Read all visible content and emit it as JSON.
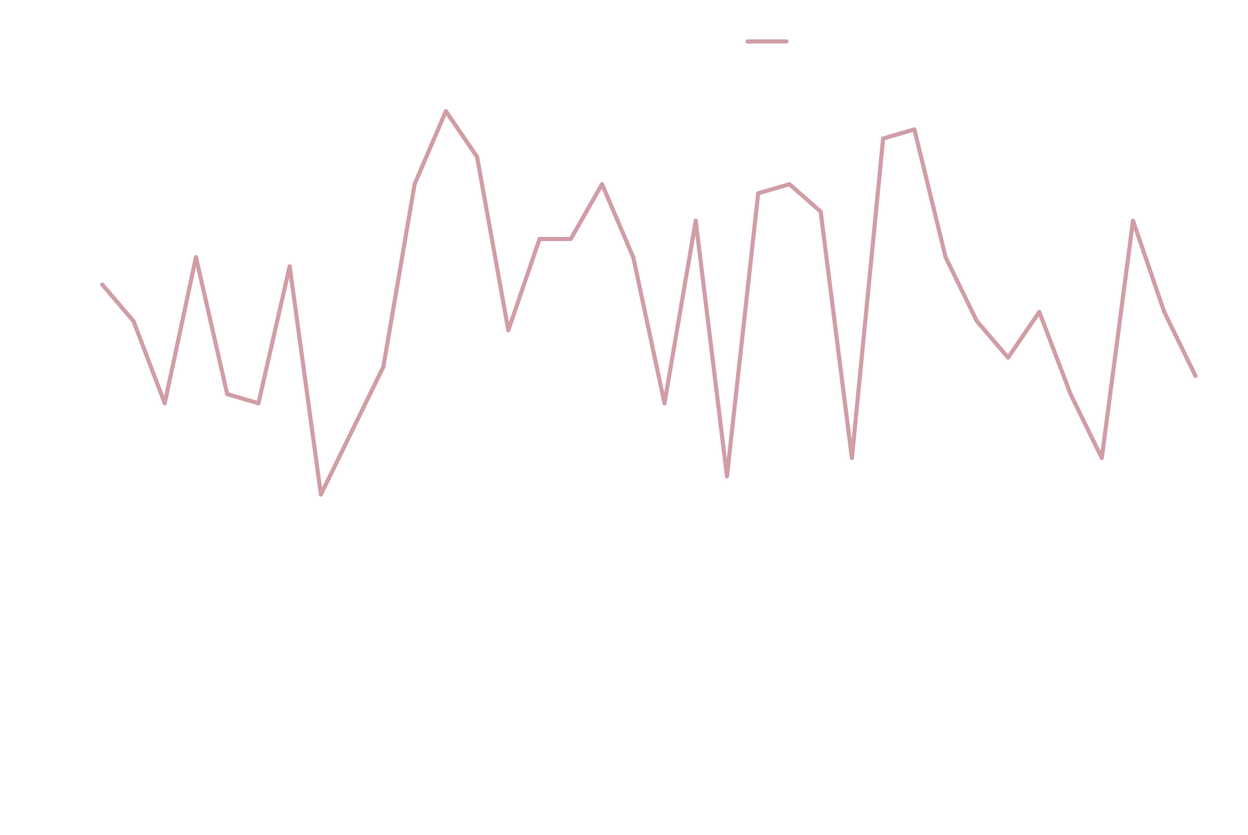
{
  "chart_data": {
    "type": "line",
    "title": "",
    "xlabel": "",
    "ylabel": "",
    "x": [
      1,
      2,
      3,
      4,
      5,
      6,
      7,
      8,
      9,
      10,
      11,
      12,
      13,
      14,
      15,
      16,
      17,
      18,
      19,
      20,
      21,
      22,
      23,
      24,
      25,
      26,
      27,
      28,
      29,
      30,
      31,
      32,
      33,
      34,
      35,
      36
    ],
    "xlim": [
      1,
      36
    ],
    "ylim": [
      0,
      100
    ],
    "grid": false,
    "legend_position": "top-center",
    "series": [
      {
        "color": "#d19da6",
        "values": [
          65.0,
          61.0,
          52.0,
          68.0,
          53.0,
          52.0,
          67.0,
          42.0,
          49.0,
          56.0,
          76.0,
          84.0,
          79.0,
          60.0,
          70.0,
          70.0,
          76.0,
          68.0,
          52.0,
          72.0,
          44.0,
          75.0,
          76.0,
          73.0,
          46.0,
          81.0,
          82.0,
          68.0,
          61.0,
          57.0,
          62.0,
          53.0,
          46.0,
          72.0,
          62.0,
          55.0
        ]
      }
    ]
  }
}
